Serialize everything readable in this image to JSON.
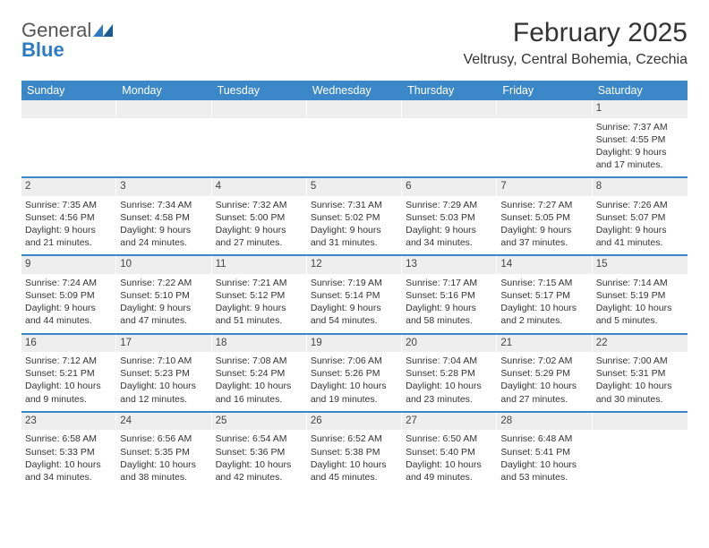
{
  "logo": {
    "word1": "General",
    "word2": "Blue"
  },
  "title": "February 2025",
  "subtitle": "Veltrusy, Central Bohemia, Czechia",
  "colors": {
    "header_bar": "#3b87c8",
    "week_divider": "#3b87c8",
    "daynum_bg": "#eeeeee",
    "logo_blue": "#2d7cc1",
    "text": "#333333",
    "background": "#ffffff"
  },
  "weekdays": [
    "Sunday",
    "Monday",
    "Tuesday",
    "Wednesday",
    "Thursday",
    "Friday",
    "Saturday"
  ],
  "weeks": [
    [
      {
        "n": "",
        "sr": "",
        "ss": "",
        "dl": ""
      },
      {
        "n": "",
        "sr": "",
        "ss": "",
        "dl": ""
      },
      {
        "n": "",
        "sr": "",
        "ss": "",
        "dl": ""
      },
      {
        "n": "",
        "sr": "",
        "ss": "",
        "dl": ""
      },
      {
        "n": "",
        "sr": "",
        "ss": "",
        "dl": ""
      },
      {
        "n": "",
        "sr": "",
        "ss": "",
        "dl": ""
      },
      {
        "n": "1",
        "sr": "Sunrise: 7:37 AM",
        "ss": "Sunset: 4:55 PM",
        "dl": "Daylight: 9 hours and 17 minutes."
      }
    ],
    [
      {
        "n": "2",
        "sr": "Sunrise: 7:35 AM",
        "ss": "Sunset: 4:56 PM",
        "dl": "Daylight: 9 hours and 21 minutes."
      },
      {
        "n": "3",
        "sr": "Sunrise: 7:34 AM",
        "ss": "Sunset: 4:58 PM",
        "dl": "Daylight: 9 hours and 24 minutes."
      },
      {
        "n": "4",
        "sr": "Sunrise: 7:32 AM",
        "ss": "Sunset: 5:00 PM",
        "dl": "Daylight: 9 hours and 27 minutes."
      },
      {
        "n": "5",
        "sr": "Sunrise: 7:31 AM",
        "ss": "Sunset: 5:02 PM",
        "dl": "Daylight: 9 hours and 31 minutes."
      },
      {
        "n": "6",
        "sr": "Sunrise: 7:29 AM",
        "ss": "Sunset: 5:03 PM",
        "dl": "Daylight: 9 hours and 34 minutes."
      },
      {
        "n": "7",
        "sr": "Sunrise: 7:27 AM",
        "ss": "Sunset: 5:05 PM",
        "dl": "Daylight: 9 hours and 37 minutes."
      },
      {
        "n": "8",
        "sr": "Sunrise: 7:26 AM",
        "ss": "Sunset: 5:07 PM",
        "dl": "Daylight: 9 hours and 41 minutes."
      }
    ],
    [
      {
        "n": "9",
        "sr": "Sunrise: 7:24 AM",
        "ss": "Sunset: 5:09 PM",
        "dl": "Daylight: 9 hours and 44 minutes."
      },
      {
        "n": "10",
        "sr": "Sunrise: 7:22 AM",
        "ss": "Sunset: 5:10 PM",
        "dl": "Daylight: 9 hours and 47 minutes."
      },
      {
        "n": "11",
        "sr": "Sunrise: 7:21 AM",
        "ss": "Sunset: 5:12 PM",
        "dl": "Daylight: 9 hours and 51 minutes."
      },
      {
        "n": "12",
        "sr": "Sunrise: 7:19 AM",
        "ss": "Sunset: 5:14 PM",
        "dl": "Daylight: 9 hours and 54 minutes."
      },
      {
        "n": "13",
        "sr": "Sunrise: 7:17 AM",
        "ss": "Sunset: 5:16 PM",
        "dl": "Daylight: 9 hours and 58 minutes."
      },
      {
        "n": "14",
        "sr": "Sunrise: 7:15 AM",
        "ss": "Sunset: 5:17 PM",
        "dl": "Daylight: 10 hours and 2 minutes."
      },
      {
        "n": "15",
        "sr": "Sunrise: 7:14 AM",
        "ss": "Sunset: 5:19 PM",
        "dl": "Daylight: 10 hours and 5 minutes."
      }
    ],
    [
      {
        "n": "16",
        "sr": "Sunrise: 7:12 AM",
        "ss": "Sunset: 5:21 PM",
        "dl": "Daylight: 10 hours and 9 minutes."
      },
      {
        "n": "17",
        "sr": "Sunrise: 7:10 AM",
        "ss": "Sunset: 5:23 PM",
        "dl": "Daylight: 10 hours and 12 minutes."
      },
      {
        "n": "18",
        "sr": "Sunrise: 7:08 AM",
        "ss": "Sunset: 5:24 PM",
        "dl": "Daylight: 10 hours and 16 minutes."
      },
      {
        "n": "19",
        "sr": "Sunrise: 7:06 AM",
        "ss": "Sunset: 5:26 PM",
        "dl": "Daylight: 10 hours and 19 minutes."
      },
      {
        "n": "20",
        "sr": "Sunrise: 7:04 AM",
        "ss": "Sunset: 5:28 PM",
        "dl": "Daylight: 10 hours and 23 minutes."
      },
      {
        "n": "21",
        "sr": "Sunrise: 7:02 AM",
        "ss": "Sunset: 5:29 PM",
        "dl": "Daylight: 10 hours and 27 minutes."
      },
      {
        "n": "22",
        "sr": "Sunrise: 7:00 AM",
        "ss": "Sunset: 5:31 PM",
        "dl": "Daylight: 10 hours and 30 minutes."
      }
    ],
    [
      {
        "n": "23",
        "sr": "Sunrise: 6:58 AM",
        "ss": "Sunset: 5:33 PM",
        "dl": "Daylight: 10 hours and 34 minutes."
      },
      {
        "n": "24",
        "sr": "Sunrise: 6:56 AM",
        "ss": "Sunset: 5:35 PM",
        "dl": "Daylight: 10 hours and 38 minutes."
      },
      {
        "n": "25",
        "sr": "Sunrise: 6:54 AM",
        "ss": "Sunset: 5:36 PM",
        "dl": "Daylight: 10 hours and 42 minutes."
      },
      {
        "n": "26",
        "sr": "Sunrise: 6:52 AM",
        "ss": "Sunset: 5:38 PM",
        "dl": "Daylight: 10 hours and 45 minutes."
      },
      {
        "n": "27",
        "sr": "Sunrise: 6:50 AM",
        "ss": "Sunset: 5:40 PM",
        "dl": "Daylight: 10 hours and 49 minutes."
      },
      {
        "n": "28",
        "sr": "Sunrise: 6:48 AM",
        "ss": "Sunset: 5:41 PM",
        "dl": "Daylight: 10 hours and 53 minutes."
      },
      {
        "n": "",
        "sr": "",
        "ss": "",
        "dl": ""
      }
    ]
  ]
}
